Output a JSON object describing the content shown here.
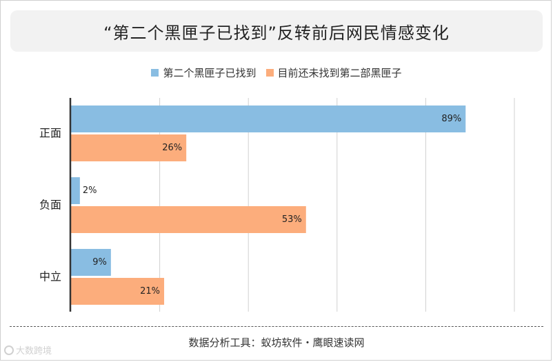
{
  "title": "“第二个黑匣子已找到”反转前后网民情感变化",
  "footer": "数据分析工具：蚁坊软件・鹰眼速读网",
  "watermark": "大数跨境",
  "chart_data": {
    "type": "bar",
    "orientation": "horizontal",
    "categories": [
      "正面",
      "负面",
      "中立"
    ],
    "series": [
      {
        "name": "第二个黑匣子已找到",
        "values": [
          89,
          2,
          9
        ],
        "color": "#89bde2"
      },
      {
        "name": "目前还未找到第二部黑匣子",
        "values": [
          26,
          53,
          21
        ],
        "color": "#fcad7c"
      }
    ],
    "value_suffix": "%",
    "xlim": [
      0,
      100
    ],
    "grid": true,
    "legend_position": "top"
  }
}
